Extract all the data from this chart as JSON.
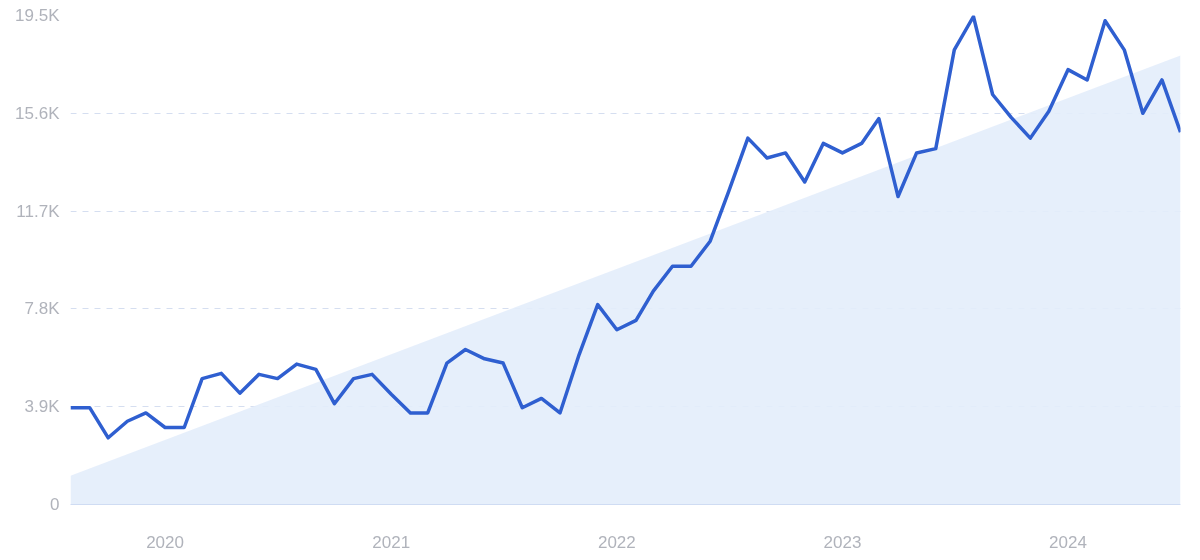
{
  "chart_data": {
    "type": "line",
    "x": [
      "2019-08",
      "2019-09",
      "2019-10",
      "2019-11",
      "2019-12",
      "2020-01",
      "2020-02",
      "2020-03",
      "2020-04",
      "2020-05",
      "2020-06",
      "2020-07",
      "2020-08",
      "2020-09",
      "2020-10",
      "2020-11",
      "2020-12",
      "2021-01",
      "2021-02",
      "2021-03",
      "2021-04",
      "2021-05",
      "2021-06",
      "2021-07",
      "2021-08",
      "2021-09",
      "2021-10",
      "2021-11",
      "2021-12",
      "2022-01",
      "2022-02",
      "2022-03",
      "2022-04",
      "2022-05",
      "2022-06",
      "2022-07",
      "2022-08",
      "2022-09",
      "2022-10",
      "2022-11",
      "2022-12",
      "2023-01",
      "2023-02",
      "2023-03",
      "2023-04",
      "2023-05",
      "2023-06",
      "2023-07",
      "2023-08",
      "2023-09",
      "2023-10",
      "2023-11",
      "2023-12",
      "2024-01",
      "2024-02",
      "2024-03",
      "2024-04",
      "2024-05",
      "2024-06",
      "2024-07"
    ],
    "series": [
      {
        "type": "area",
        "color": "#e3edfb",
        "x": [
          "2019-08",
          "2024-07"
        ],
        "values": [
          1150,
          17900
        ]
      },
      {
        "color": "#2f5fd0",
        "values": [
          3860,
          3860,
          2660,
          3320,
          3650,
          3070,
          3070,
          5020,
          5230,
          4440,
          5190,
          5020,
          5600,
          5390,
          4020,
          5020,
          5190,
          4400,
          3650,
          3650,
          5640,
          6180,
          5810,
          5640,
          3860,
          4230,
          3650,
          5980,
          7970,
          6970,
          7340,
          8510,
          9500,
          9500,
          10500,
          12490,
          14610,
          13820,
          14020,
          12860,
          14400,
          14020,
          14400,
          15390,
          12280,
          14020,
          14190,
          18130,
          19460,
          16350,
          15440,
          14610,
          15680,
          17340,
          16930,
          19290,
          18130,
          15600,
          16930,
          14850
        ]
      }
    ],
    "xlim": [
      "2019-08",
      "2024-07"
    ],
    "xticks": [
      {
        "value": "2020-01",
        "label": "2020"
      },
      {
        "value": "2021-01",
        "label": "2021"
      },
      {
        "value": "2022-01",
        "label": "2022"
      },
      {
        "value": "2023-01",
        "label": "2023"
      },
      {
        "value": "2024-01",
        "label": "2024"
      }
    ],
    "ylim": [
      0,
      19500
    ],
    "yticks": [
      0,
      {
        "value": 3900,
        "label": "3.9K"
      },
      {
        "value": 7800,
        "label": "7.8K"
      },
      {
        "value": 11700,
        "label": "11.7K"
      },
      {
        "value": 15600,
        "label": "15.6K"
      },
      {
        "value": 19500,
        "label": "19.5K"
      }
    ],
    "grid": "y",
    "line_style": "solid"
  }
}
